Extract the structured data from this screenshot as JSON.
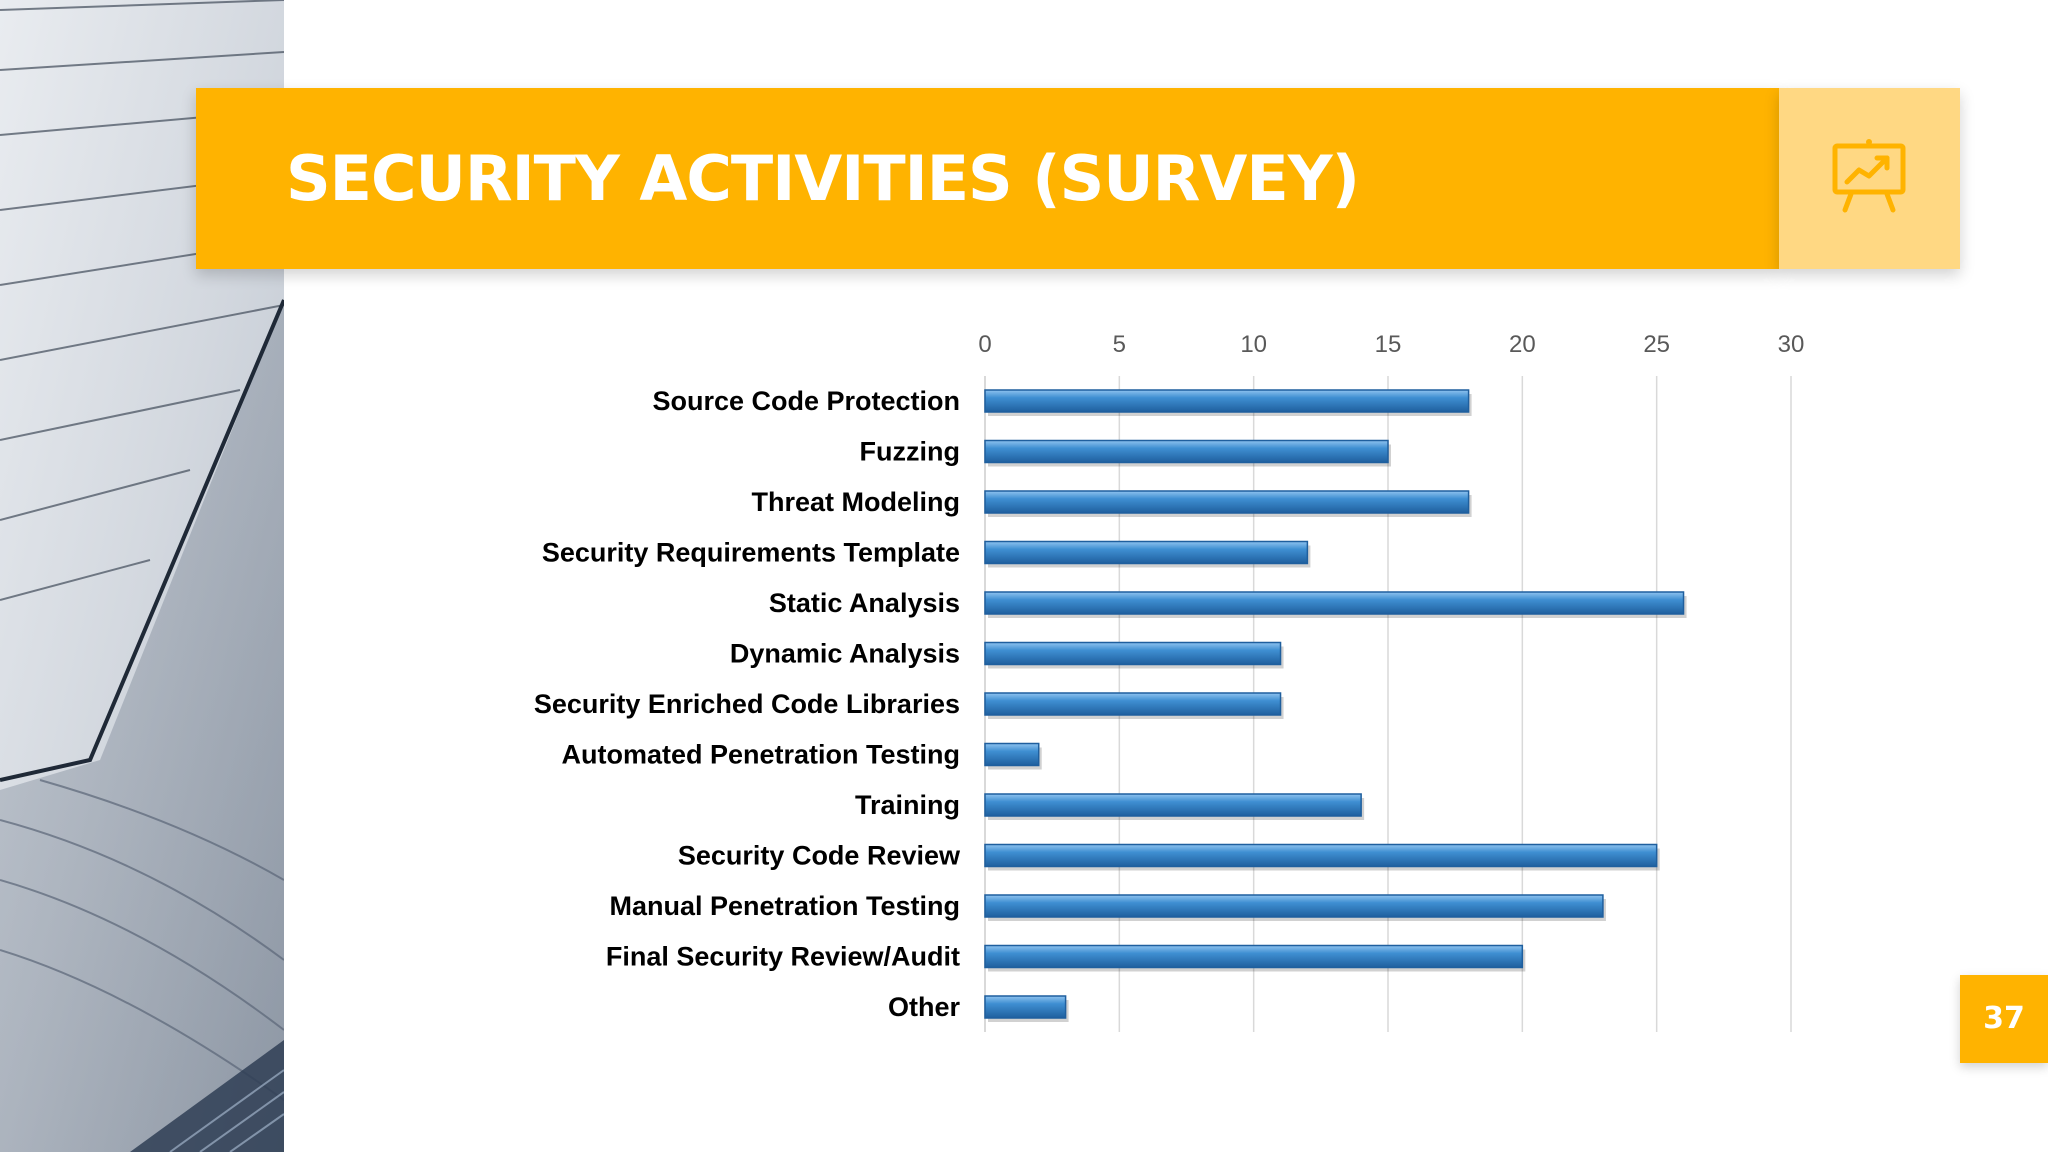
{
  "slide": {
    "title": "SECURITY ACTIVITIES (SURVEY)",
    "page_number": "37",
    "icon": "presentation-chart-icon"
  },
  "colors": {
    "accent": "#FFB300",
    "accent_light": "#FFD883",
    "bar": "#3F8FD2",
    "bar_dark": "#1F5F9E",
    "grid": "#D9D9D9",
    "label_text": "#000000",
    "tick_text": "#595959"
  },
  "chart_data": {
    "type": "bar",
    "orientation": "horizontal",
    "title": "",
    "xlabel": "",
    "ylabel": "",
    "xlim": [
      0,
      30
    ],
    "ticks": [
      0,
      5,
      10,
      15,
      20,
      25,
      30
    ],
    "tick_position": "top",
    "grid": true,
    "legend": "none",
    "categories": [
      "Source Code Protection",
      "Fuzzing",
      "Threat Modeling",
      "Security Requirements Template",
      "Static Analysis",
      "Dynamic Analysis",
      "Security Enriched Code Libraries",
      "Automated Penetration Testing",
      "Training",
      "Security Code Review",
      "Manual Penetration Testing",
      "Final Security Review/Audit",
      "Other"
    ],
    "values": [
      18,
      15,
      18,
      12,
      26,
      11,
      11,
      2,
      14,
      25,
      23,
      20,
      3
    ]
  }
}
